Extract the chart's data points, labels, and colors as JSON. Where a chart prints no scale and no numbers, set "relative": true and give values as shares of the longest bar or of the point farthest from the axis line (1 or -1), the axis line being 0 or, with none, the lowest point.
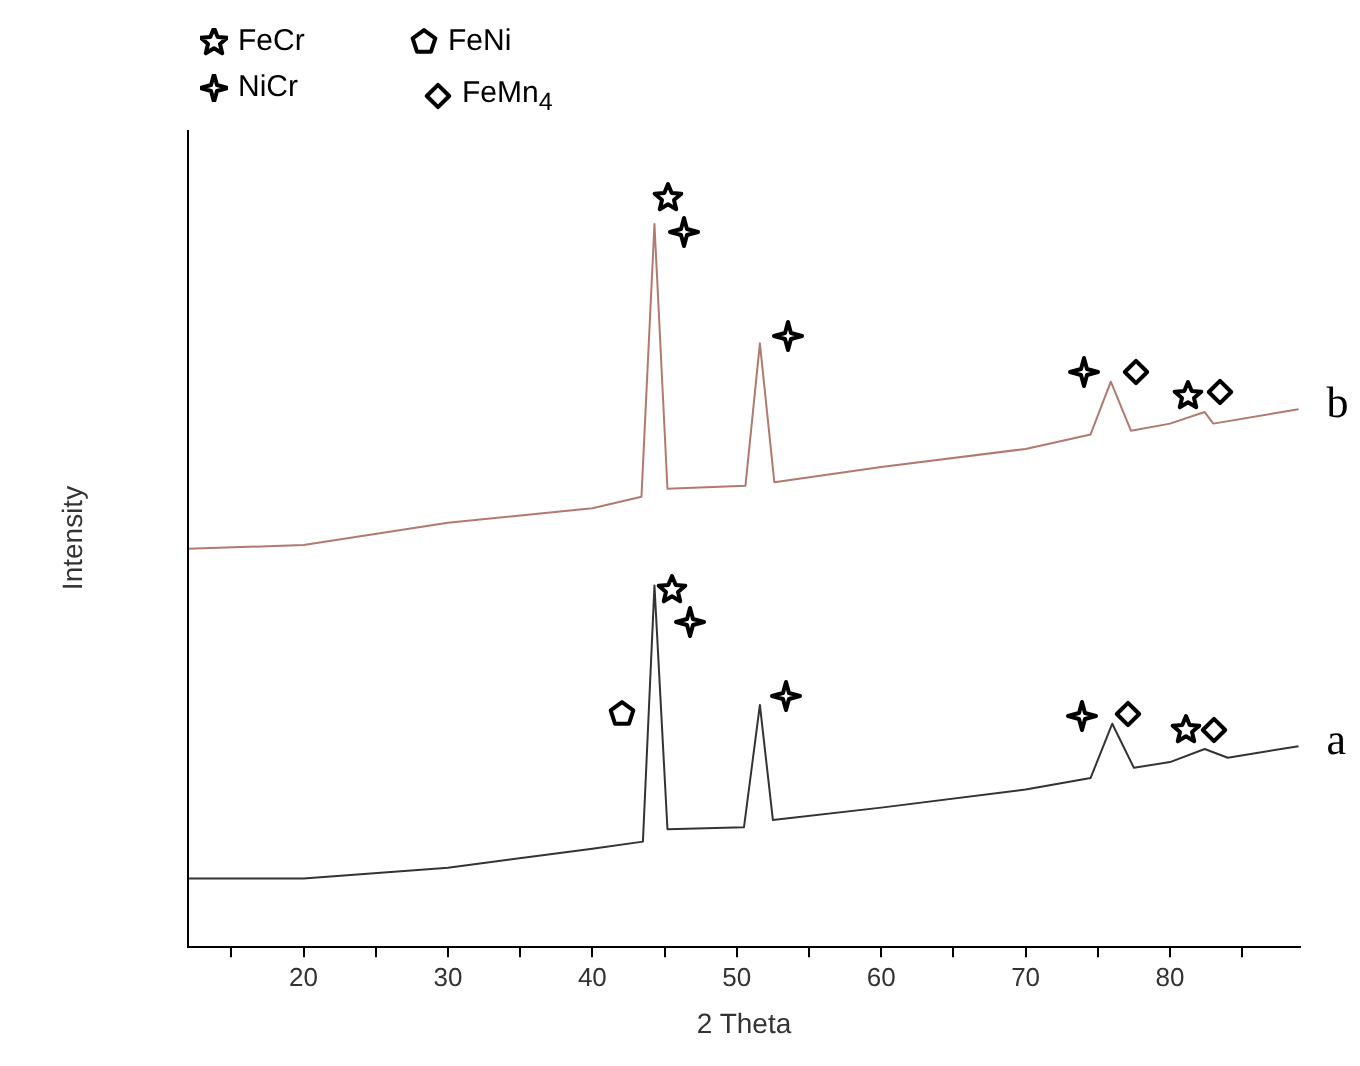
{
  "chart_data": {
    "type": "line",
    "xlabel": "2 Theta",
    "ylabel": "Intensity",
    "relative": true,
    "grid": false,
    "legend": false,
    "marker": "none",
    "line_style": "solid",
    "xlim": [
      12,
      89
    ],
    "xticks": [
      {
        "value": 15,
        "label": null
      },
      20,
      {
        "value": 25,
        "label": null
      },
      30,
      {
        "value": 35,
        "label": null
      },
      40,
      {
        "value": 45,
        "label": null
      },
      50,
      {
        "value": 55,
        "label": null
      },
      60,
      {
        "value": 65,
        "label": null
      },
      70,
      {
        "value": 75,
        "label": null
      },
      80,
      {
        "value": 85,
        "label": null
      }
    ],
    "annotations": [
      "FeCr",
      "NiCr",
      "FeNi",
      "FeMn$_{4}$"
    ],
    "series": [
      {
        "name": "a",
        "color": "#333333",
        "x": [
          12,
          20,
          30,
          40,
          43.5,
          44.3,
          45.2,
          50.5,
          51.6,
          52.5,
          60,
          70,
          74.5,
          76,
          77.5,
          80,
          82.4,
          84,
          88.9
        ],
        "values": [
          0.095,
          0.095,
          0.11,
          0.136,
          0.146,
          0.5,
          0.163,
          0.166,
          0.335,
          0.176,
          0.193,
          0.218,
          0.234,
          0.309,
          0.248,
          0.256,
          0.274,
          0.262,
          0.278
        ]
      },
      {
        "name": "b",
        "color": "#b07a70",
        "x": [
          12,
          20,
          30,
          40,
          43.4,
          44.3,
          45.2,
          50.6,
          51.6,
          52.6,
          60,
          70,
          74.5,
          75.9,
          77.3,
          80,
          82.4,
          83,
          88.9
        ],
        "values": [
          0.551,
          0.556,
          0.587,
          0.607,
          0.623,
          1.0,
          0.634,
          0.638,
          0.835,
          0.643,
          0.664,
          0.689,
          0.709,
          0.782,
          0.714,
          0.724,
          0.74,
          0.724,
          0.744
        ]
      }
    ]
  }
}
